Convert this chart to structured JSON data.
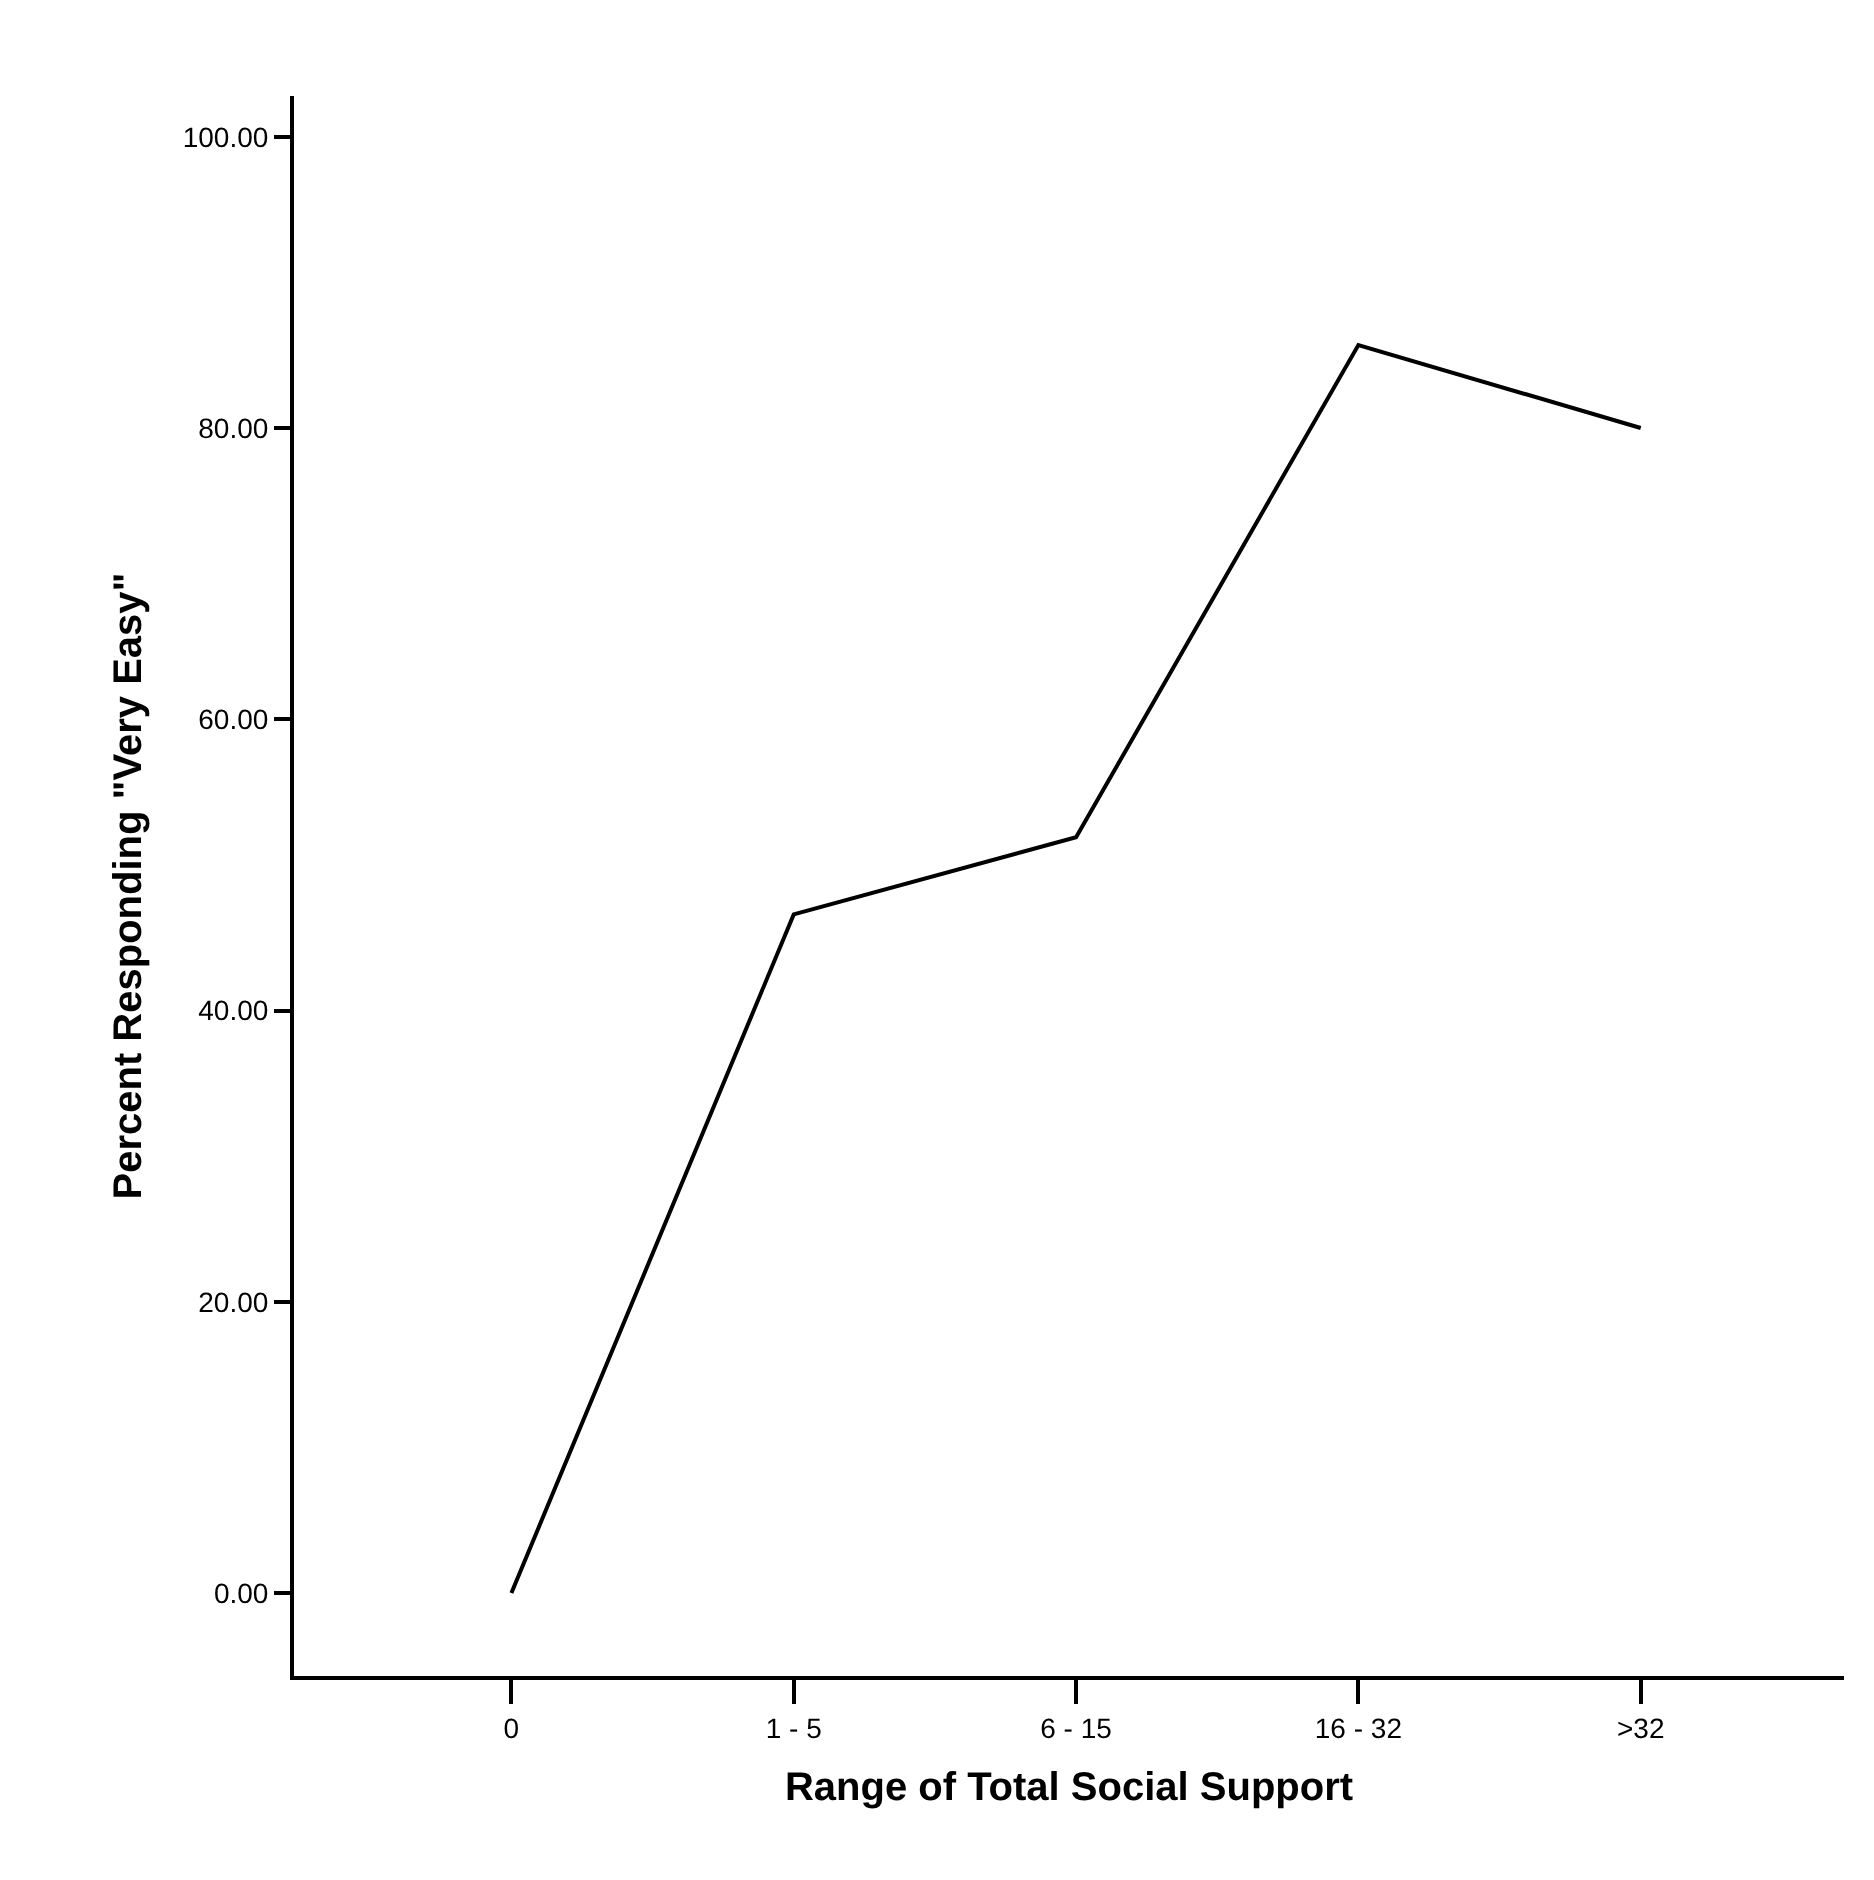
{
  "chart_data": {
    "type": "line",
    "xlabel": "Range of Total Social Support",
    "ylabel": "Percent Responding \"Very Easy\"",
    "categories": [
      "0",
      "1 - 5",
      "6 - 15",
      "16 - 32",
      ">32"
    ],
    "series": [
      {
        "color": "#000000",
        "values": [
          0,
          46.6,
          51.9,
          85.7,
          80.0
        ]
      }
    ],
    "ylim": [
      -5.7,
      102.8
    ],
    "yticks": [
      {
        "value": 0,
        "label": "0.00"
      },
      {
        "value": 20,
        "label": "20.00"
      },
      {
        "value": 40,
        "label": "40.00"
      },
      {
        "value": 60,
        "label": "60.00"
      },
      {
        "value": 80,
        "label": "80.00"
      },
      {
        "value": 100,
        "label": "100.00"
      }
    ],
    "marker": "none",
    "line_style": "solid"
  }
}
